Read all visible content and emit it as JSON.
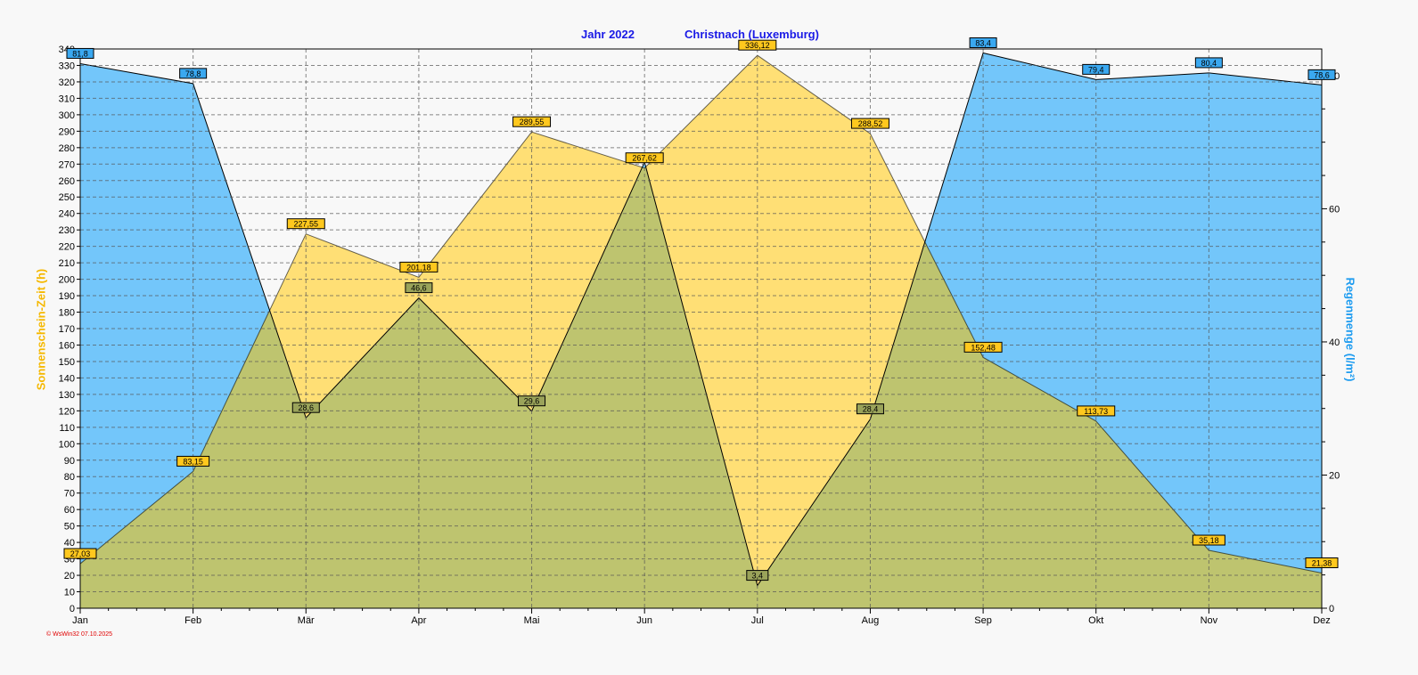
{
  "chart_data": {
    "type": "area",
    "title_left": "Jahr  2022",
    "title_right": "Christnach (Luxemburg)",
    "categories": [
      "Jan",
      "Feb",
      "Mär",
      "Apr",
      "Mai",
      "Jun",
      "Jul",
      "Aug",
      "Sep",
      "Okt",
      "Nov",
      "Dez"
    ],
    "ylabel_left": "Sonnenschein-Zeit  (h)",
    "ylabel_right": "Regenmenge  (l/m²)",
    "ylim_left": [
      0,
      340
    ],
    "yticks_left_step": 10,
    "ylim_right": [
      0,
      84
    ],
    "yticks_right": [
      0,
      20,
      40,
      60,
      80
    ],
    "grid": true,
    "series": [
      {
        "name": "Regenmenge",
        "axis": "right",
        "color": "#73c6fa",
        "values": [
          81.8,
          78.8,
          28.6,
          46.6,
          29.6,
          67.0,
          3.4,
          28.4,
          83.4,
          79.4,
          80.4,
          78.6
        ],
        "labels": [
          "81,8",
          "78,8",
          "28,6",
          "46,6",
          "29,6",
          "",
          "3,4",
          "28,4",
          "83,4",
          "79,4",
          "80,4",
          "78,6"
        ]
      },
      {
        "name": "Sonnenschein-Zeit",
        "axis": "left",
        "color": "#ffdf75",
        "values": [
          27.03,
          83.15,
          227.55,
          201.18,
          289.55,
          267.62,
          336.12,
          288.52,
          152.48,
          113.73,
          35.18,
          21.38
        ],
        "labels": [
          "27,03",
          "83,15",
          "227,55",
          "201,18",
          "289,55",
          "267,62",
          "336,12",
          "288,52",
          "152,48",
          "113,73",
          "35,18",
          "21,38"
        ]
      }
    ],
    "overlap_color": "#bec46f"
  },
  "footer": "© WsWin32  07.10.2025"
}
